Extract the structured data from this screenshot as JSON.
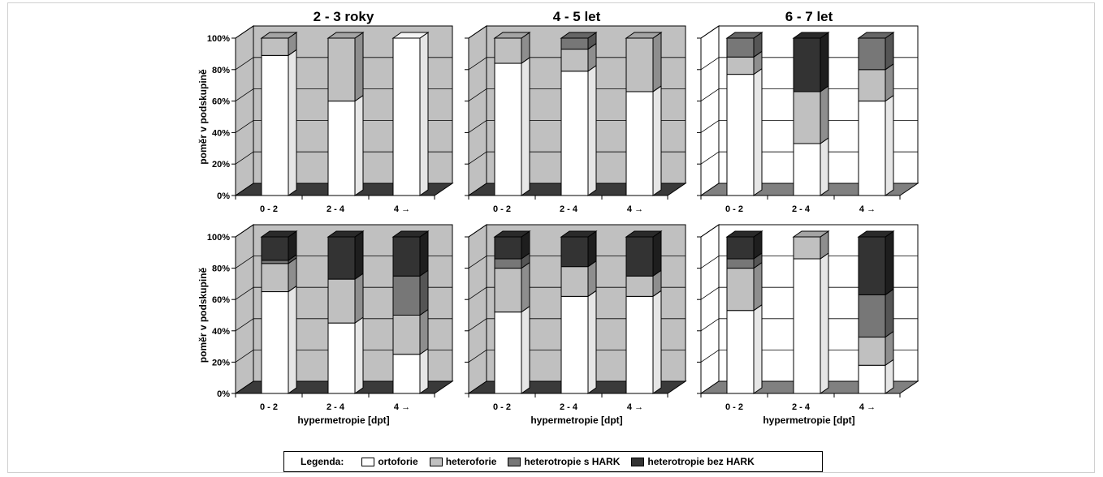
{
  "colors": {
    "ortoforie": "#ffffff",
    "heteroforie": "#c0c0c0",
    "heterotropie_s_hark": "#777777",
    "heterotropie_bez_hark": "#333333"
  },
  "legend": {
    "title": "Legenda:",
    "items": [
      "ortoforie",
      "heteroforie",
      "heterotropie s HARK",
      "heterotropie bez HARK"
    ]
  },
  "chart_data": [
    {
      "type": "bar",
      "stacked": true,
      "title": "2 - 3 roky",
      "ylabel": "poměr v podskupině",
      "xlabel": "",
      "ylim": [
        0,
        100
      ],
      "yticks": [
        "0%",
        "20%",
        "40%",
        "60%",
        "80%",
        "100%"
      ],
      "categories": [
        "0 - 2",
        "2 - 4",
        "4 →"
      ],
      "series": [
        {
          "name": "ortoforie",
          "values": [
            89,
            60,
            100
          ]
        },
        {
          "name": "heteroforie",
          "values": [
            11,
            40,
            0
          ]
        },
        {
          "name": "heterotropie s HARK",
          "values": [
            0,
            0,
            0
          ]
        },
        {
          "name": "heterotropie bez HARK",
          "values": [
            0,
            0,
            0
          ]
        }
      ]
    },
    {
      "type": "bar",
      "stacked": true,
      "title": "4 - 5 let",
      "ylabel": "",
      "xlabel": "",
      "ylim": [
        0,
        100
      ],
      "yticks": [],
      "categories": [
        "0 - 2",
        "2 - 4",
        "4 →"
      ],
      "series": [
        {
          "name": "ortoforie",
          "values": [
            84,
            79,
            66
          ]
        },
        {
          "name": "heteroforie",
          "values": [
            16,
            14,
            34
          ]
        },
        {
          "name": "heterotropie s HARK",
          "values": [
            0,
            7,
            0
          ]
        },
        {
          "name": "heterotropie bez HARK",
          "values": [
            0,
            0,
            0
          ]
        }
      ]
    },
    {
      "type": "bar",
      "stacked": true,
      "title": "6 - 7 let",
      "ylabel": "",
      "xlabel": "",
      "ylim": [
        0,
        100
      ],
      "yticks": [],
      "categories": [
        "0 - 2",
        "2 - 4",
        "4 →"
      ],
      "series": [
        {
          "name": "ortoforie",
          "values": [
            77,
            33,
            60
          ]
        },
        {
          "name": "heteroforie",
          "values": [
            11,
            33,
            20
          ]
        },
        {
          "name": "heterotropie s HARK",
          "values": [
            12,
            0,
            20
          ]
        },
        {
          "name": "heterotropie bez HARK",
          "values": [
            0,
            34,
            0
          ]
        }
      ]
    },
    {
      "type": "bar",
      "stacked": true,
      "title": "",
      "ylabel": "poměr v podskupině",
      "xlabel": "hypermetropie [dpt]",
      "ylim": [
        0,
        100
      ],
      "yticks": [
        "0%",
        "20%",
        "40%",
        "60%",
        "80%",
        "100%"
      ],
      "categories": [
        "0 - 2",
        "2 - 4",
        "4 →"
      ],
      "series": [
        {
          "name": "ortoforie",
          "values": [
            65,
            45,
            25
          ]
        },
        {
          "name": "heteroforie",
          "values": [
            18,
            28,
            25
          ]
        },
        {
          "name": "heterotropie s HARK",
          "values": [
            2,
            0,
            25
          ]
        },
        {
          "name": "heterotropie bez HARK",
          "values": [
            15,
            27,
            25
          ]
        }
      ]
    },
    {
      "type": "bar",
      "stacked": true,
      "title": "",
      "ylabel": "",
      "xlabel": "hypermetropie [dpt]",
      "ylim": [
        0,
        100
      ],
      "yticks": [],
      "categories": [
        "0 - 2",
        "2 - 4",
        "4 →"
      ],
      "series": [
        {
          "name": "ortoforie",
          "values": [
            52,
            62,
            62
          ]
        },
        {
          "name": "heteroforie",
          "values": [
            28,
            19,
            13
          ]
        },
        {
          "name": "heterotropie s HARK",
          "values": [
            6,
            0,
            0
          ]
        },
        {
          "name": "heterotropie bez HARK",
          "values": [
            14,
            19,
            25
          ]
        }
      ]
    },
    {
      "type": "bar",
      "stacked": true,
      "title": "",
      "ylabel": "",
      "xlabel": "hypermetropie [dpt]",
      "ylim": [
        0,
        100
      ],
      "yticks": [],
      "categories": [
        "0 - 2",
        "2 - 4",
        "4 →"
      ],
      "series": [
        {
          "name": "ortoforie",
          "values": [
            53,
            86,
            18
          ]
        },
        {
          "name": "heteroforie",
          "values": [
            27,
            14,
            18
          ]
        },
        {
          "name": "heterotropie s HARK",
          "values": [
            6,
            0,
            27
          ]
        },
        {
          "name": "heterotropie bez HARK",
          "values": [
            14,
            0,
            37
          ]
        }
      ]
    }
  ]
}
